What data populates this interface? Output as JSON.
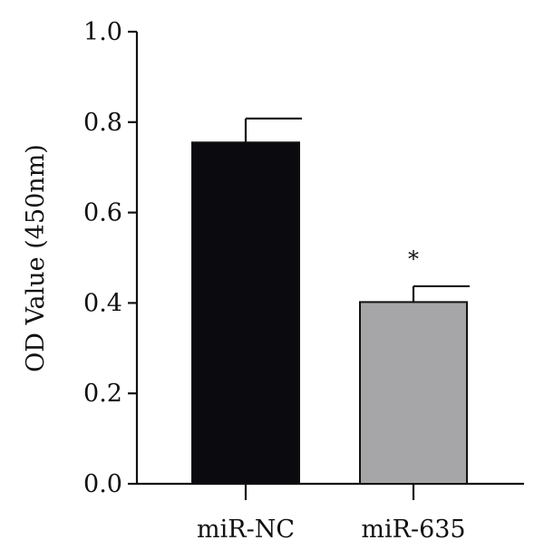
{
  "chart_data": {
    "type": "bar",
    "ylabel": "OD Value (450nm)",
    "xlabel": "",
    "ylim": [
      0,
      1.0
    ],
    "yticks": [
      0.0,
      0.2,
      0.4,
      0.6,
      0.8,
      1.0
    ],
    "ytick_labels": [
      "0.0",
      "0.2",
      "0.4",
      "0.6",
      "0.8",
      "1.0"
    ],
    "categories": [
      "miR-NC",
      "miR-635"
    ],
    "values": [
      0.755,
      0.402
    ],
    "errors": [
      0.053,
      0.035
    ],
    "bar_colors": [
      "#0a0a0f",
      "#a6a6a8"
    ],
    "annotations": [
      {
        "category_index": 1,
        "text": "*"
      }
    ],
    "grid": false,
    "legend": "none"
  }
}
